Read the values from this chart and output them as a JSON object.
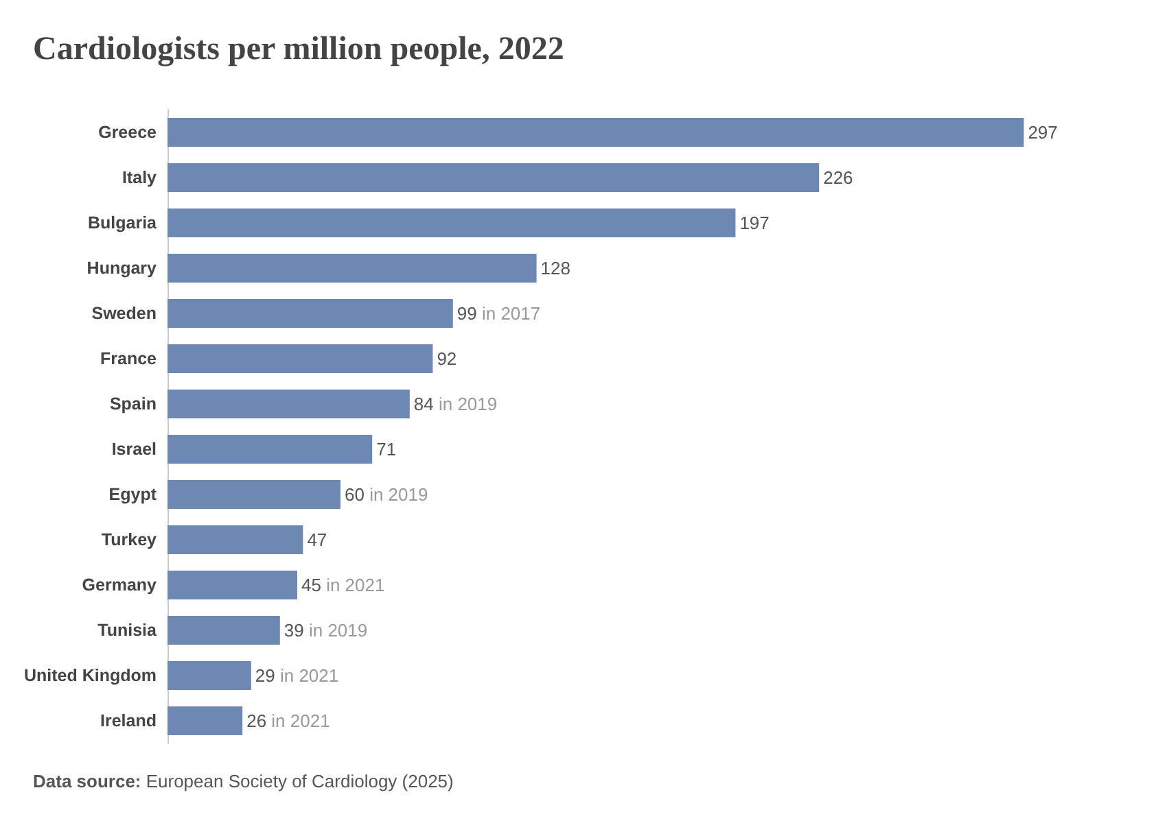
{
  "chart_data": {
    "type": "bar",
    "orientation": "horizontal",
    "title": "Cardiologists per million people, 2022",
    "categories": [
      "Greece",
      "Italy",
      "Bulgaria",
      "Hungary",
      "Sweden",
      "France",
      "Spain",
      "Israel",
      "Egypt",
      "Turkey",
      "Germany",
      "Tunisia",
      "United Kingdom",
      "Ireland"
    ],
    "values": [
      297,
      226,
      197,
      128,
      99,
      92,
      84,
      71,
      60,
      47,
      45,
      39,
      29,
      26
    ],
    "value_labels": [
      "297",
      "226",
      "197",
      "128",
      "99 in 2017",
      "92",
      "84 in 2019",
      "71",
      "60 in 2019",
      "47",
      "45 in 2021",
      "39 in 2019",
      "29 in 2021",
      "26 in 2021"
    ],
    "color": "#6d88b3",
    "annotations": [
      "Data source: European Society of Cardiology (2025)"
    ]
  }
}
